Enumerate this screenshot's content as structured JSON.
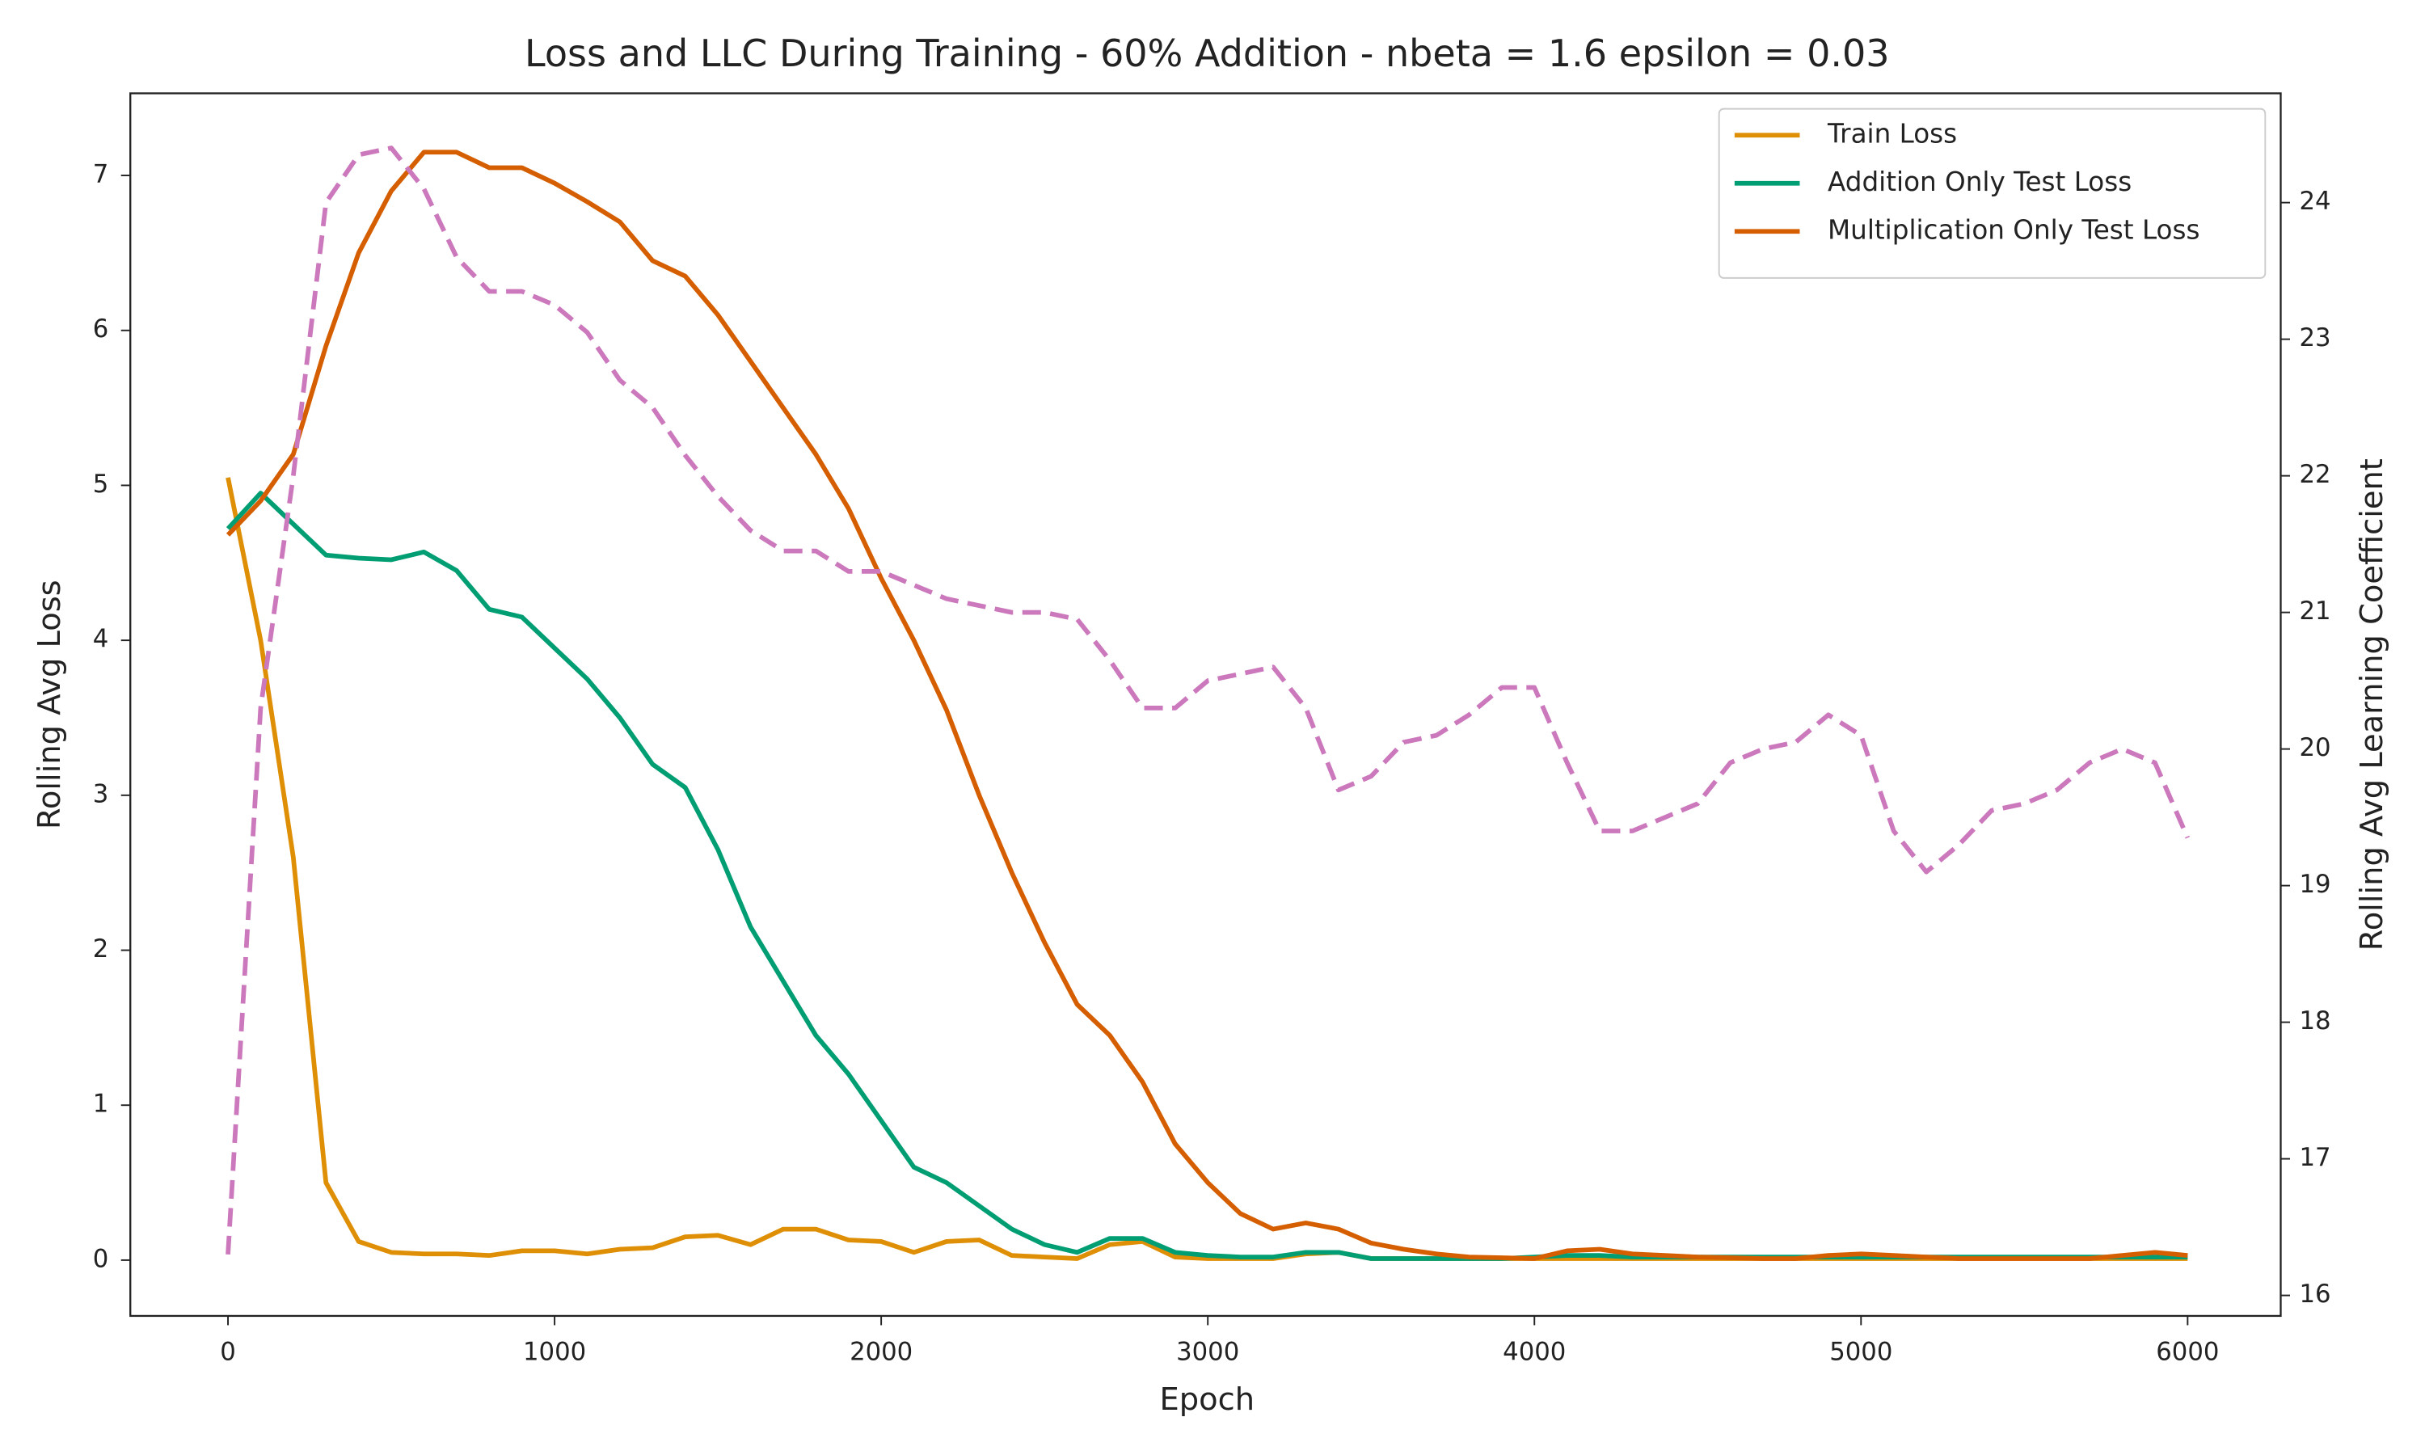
{
  "chart_data": {
    "type": "line",
    "title": "Loss and LLC During Training - 60% Addition - nbeta = 1.6 epsilon = 0.03",
    "x_label": "Epoch",
    "y_label": "Rolling Avg Loss",
    "y2_label": "Rolling Avg Learning Coefficient",
    "x": [
      0,
      100,
      200,
      300,
      400,
      500,
      600,
      700,
      800,
      900,
      1000,
      1100,
      1200,
      1300,
      1400,
      1500,
      1600,
      1700,
      1800,
      1900,
      2000,
      2100,
      2200,
      2300,
      2400,
      2500,
      2600,
      2700,
      2800,
      2900,
      3000,
      3100,
      3200,
      3300,
      3400,
      3500,
      3600,
      3700,
      3800,
      3900,
      4000,
      4100,
      4200,
      4300,
      4400,
      4500,
      4600,
      4700,
      4800,
      4900,
      5000,
      5100,
      5200,
      5300,
      5400,
      5500,
      5600,
      5700,
      5800,
      5900,
      6000
    ],
    "series": [
      {
        "name": "Train Loss",
        "color": "#de8f05",
        "values": [
          5.05,
          4.0,
          2.6,
          0.5,
          0.12,
          0.05,
          0.04,
          0.04,
          0.03,
          0.06,
          0.06,
          0.04,
          0.07,
          0.08,
          0.15,
          0.16,
          0.1,
          0.2,
          0.2,
          0.13,
          0.12,
          0.05,
          0.12,
          0.13,
          0.03,
          0.02,
          0.01,
          0.1,
          0.12,
          0.02,
          0.01,
          0.01,
          0.01,
          0.04,
          0.05,
          0.01,
          0.01,
          0.01,
          0.01,
          0.01,
          0.01,
          0.01,
          0.01,
          0.01,
          0.01,
          0.01,
          0.01,
          0.01,
          0.01,
          0.01,
          0.01,
          0.01,
          0.01,
          0.01,
          0.01,
          0.01,
          0.01,
          0.01,
          0.01,
          0.01,
          0.01
        ]
      },
      {
        "name": "Addition Only Test Loss",
        "color": "#029e73",
        "values": [
          4.72,
          4.95,
          4.75,
          4.55,
          4.53,
          4.52,
          4.57,
          4.45,
          4.2,
          4.15,
          3.95,
          3.75,
          3.5,
          3.2,
          3.05,
          2.65,
          2.15,
          1.8,
          1.45,
          1.2,
          0.9,
          0.6,
          0.5,
          0.35,
          0.2,
          0.1,
          0.05,
          0.14,
          0.14,
          0.05,
          0.03,
          0.02,
          0.02,
          0.05,
          0.05,
          0.01,
          0.01,
          0.01,
          0.01,
          0.01,
          0.02,
          0.03,
          0.03,
          0.02,
          0.02,
          0.02,
          0.02,
          0.02,
          0.02,
          0.02,
          0.02,
          0.02,
          0.02,
          0.02,
          0.02,
          0.02,
          0.02,
          0.02,
          0.02,
          0.02,
          0.02
        ]
      },
      {
        "name": "Multiplication Only Test Loss",
        "color": "#d55e00",
        "values": [
          4.68,
          4.9,
          5.2,
          5.9,
          6.5,
          6.9,
          7.15,
          7.15,
          7.05,
          7.05,
          6.95,
          6.83,
          6.7,
          6.45,
          6.35,
          6.1,
          5.8,
          5.5,
          5.2,
          4.85,
          4.4,
          4.0,
          3.55,
          3.0,
          2.5,
          2.05,
          1.65,
          1.45,
          1.15,
          0.75,
          0.5,
          0.3,
          0.2,
          0.24,
          0.2,
          0.11,
          0.07,
          0.04,
          0.02,
          0.015,
          0.01,
          0.06,
          0.07,
          0.04,
          0.03,
          0.02,
          0.015,
          0.01,
          0.01,
          0.03,
          0.04,
          0.03,
          0.02,
          0.01,
          0.01,
          0.01,
          0.01,
          0.01,
          0.03,
          0.05,
          0.03
        ]
      },
      {
        "color": "#cc78bc",
        "axis": "y2",
        "line_style": "dashed",
        "values": [
          16.3,
          20.3,
          22.0,
          24.0,
          24.35,
          24.4,
          24.1,
          23.6,
          23.35,
          23.35,
          23.25,
          23.05,
          22.7,
          22.5,
          22.15,
          21.85,
          21.6,
          21.45,
          21.45,
          21.3,
          21.3,
          21.2,
          21.1,
          21.05,
          21.0,
          21.0,
          20.95,
          20.65,
          20.3,
          20.3,
          20.5,
          20.55,
          20.6,
          20.3,
          19.7,
          19.8,
          20.05,
          20.1,
          20.25,
          20.45,
          20.45,
          19.9,
          19.4,
          19.4,
          19.5,
          19.6,
          19.9,
          20.0,
          20.05,
          20.25,
          20.1,
          19.4,
          19.1,
          19.3,
          19.55,
          19.6,
          19.7,
          19.9,
          20.0,
          19.9,
          19.35
        ]
      }
    ],
    "xlim": [
      -299,
      6285
    ],
    "xticks": [
      0,
      1000,
      2000,
      3000,
      4000,
      5000,
      6000
    ],
    "ylim": [
      -0.36,
      7.53
    ],
    "yticks": [
      0,
      1,
      2,
      3,
      4,
      5,
      6,
      7
    ],
    "y2lim": [
      15.85,
      24.8
    ],
    "y2ticks": [
      16,
      17,
      18,
      19,
      20,
      21,
      22,
      23,
      24
    ],
    "legend": "upper right",
    "grid": false
  }
}
